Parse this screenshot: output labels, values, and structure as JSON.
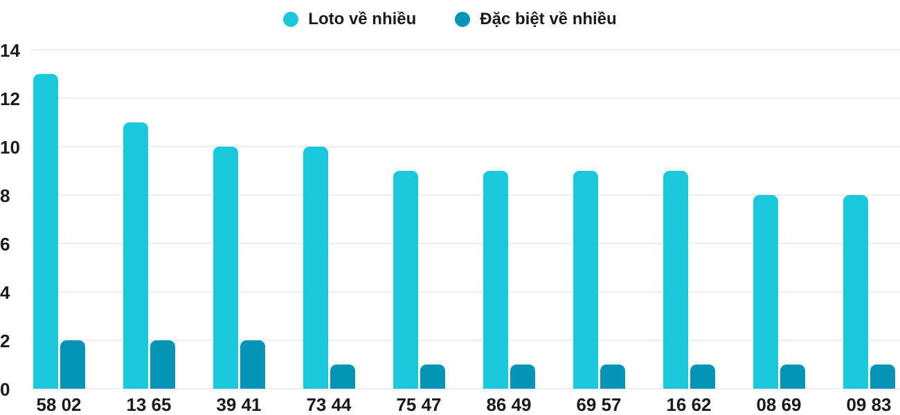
{
  "legend": {
    "items": [
      {
        "label": "Loto về nhiều",
        "color": "#1AC8DB"
      },
      {
        "label": "Đặc biệt về nhiều",
        "color": "#0494B8"
      }
    ]
  },
  "chart_data": {
    "type": "bar",
    "title": "",
    "xlabel": "",
    "ylabel": "",
    "categories": [
      "58 02",
      "13 65",
      "39 41",
      "73 44",
      "75 47",
      "86 49",
      "69 57",
      "16 62",
      "08 69",
      "09 83"
    ],
    "series": [
      {
        "name": "Loto về nhiều",
        "color": "#1AC8DB",
        "values": [
          13,
          11,
          10,
          10,
          9,
          9,
          9,
          9,
          8,
          8
        ]
      },
      {
        "name": "Đặc biệt về nhiều",
        "color": "#0494B8",
        "values": [
          2,
          2,
          2,
          1,
          1,
          1,
          1,
          1,
          1,
          1
        ]
      }
    ],
    "ylim": [
      0,
      14
    ],
    "yticks": [
      0,
      2,
      4,
      6,
      8,
      10,
      12,
      14
    ],
    "grid": true,
    "legend_position": "top"
  },
  "colors": {
    "background": "#FFFFFF",
    "gridline": "#ECECEC",
    "text": "#1A1A1A"
  }
}
